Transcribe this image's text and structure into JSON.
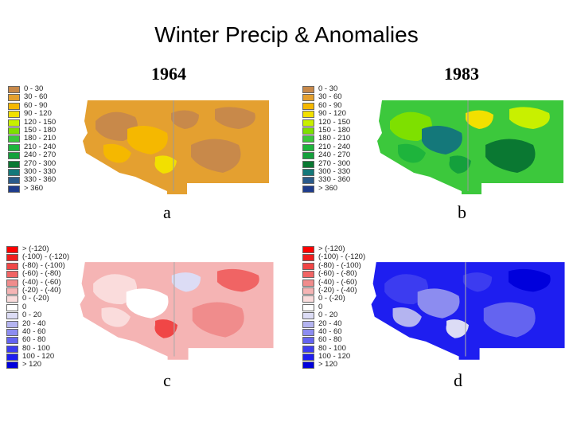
{
  "title": "Winter Precip & Anomalies",
  "years": {
    "left": "1964",
    "right": "1983"
  },
  "panel_labels": {
    "a": "a",
    "b": "b",
    "c": "c",
    "d": "d"
  },
  "precip_legend": [
    {
      "label": "0 - 30",
      "color": "#c8894a"
    },
    {
      "label": "30 - 60",
      "color": "#e4a030"
    },
    {
      "label": "60 - 90",
      "color": "#f5b800"
    },
    {
      "label": "90 - 120",
      "color": "#f2e000"
    },
    {
      "label": "120 - 150",
      "color": "#c8f000"
    },
    {
      "label": "150 - 180",
      "color": "#7ee000"
    },
    {
      "label": "180 - 210",
      "color": "#3cc83c"
    },
    {
      "label": "210 - 240",
      "color": "#1eb43c"
    },
    {
      "label": "240 - 270",
      "color": "#14a03c"
    },
    {
      "label": "270 - 300",
      "color": "#0a7832"
    },
    {
      "label": "300 - 330",
      "color": "#14787a"
    },
    {
      "label": "330 - 360",
      "color": "#2a5a8a"
    },
    {
      "label": "> 360",
      "color": "#1e3c8c"
    }
  ],
  "anomaly_legend": [
    {
      "label": "> (-120)",
      "color": "#ff0000"
    },
    {
      "label": "(-100) - (-120)",
      "color": "#f01e1e"
    },
    {
      "label": "(-80) - (-100)",
      "color": "#f04646"
    },
    {
      "label": "(-60) - (-80)",
      "color": "#f06464"
    },
    {
      "label": "(-40) - (-60)",
      "color": "#f08c8c"
    },
    {
      "label": "(-20) - (-40)",
      "color": "#f5b4b4"
    },
    {
      "label": "0 - (-20)",
      "color": "#fadcdc"
    },
    {
      "label": "0",
      "color": "#ffffff"
    },
    {
      "label": "0 - 20",
      "color": "#dcdcf5"
    },
    {
      "label": "20 - 40",
      "color": "#b4b4f0"
    },
    {
      "label": "40 - 60",
      "color": "#8c8cf0"
    },
    {
      "label": "60 - 80",
      "color": "#6464f0"
    },
    {
      "label": "80 - 100",
      "color": "#3c3cf0"
    },
    {
      "label": "100 - 120",
      "color": "#1e1ef0"
    },
    {
      "label": "> 120",
      "color": "#0000dc"
    }
  ],
  "maps": {
    "a": {
      "base": "#e4a030",
      "border": "#9a9a9a",
      "patches": [
        "#c8894a",
        "#c8894a",
        "#f5b800",
        "#c8894a",
        "#f5b800",
        "#c8894a",
        "#f2e000"
      ]
    },
    "b": {
      "base": "#3cc83c",
      "border": "#9a9a9a",
      "patches": [
        "#7ee000",
        "#0a7832",
        "#14787a",
        "#c8f000",
        "#1eb43c",
        "#f2e000",
        "#14a03c"
      ]
    },
    "c": {
      "base": "#f5b4b4",
      "border": "#aaaaaa",
      "patches": [
        "#fadcdc",
        "#f08c8c",
        "#ffffff",
        "#f06464",
        "#fadcdc",
        "#dcdcf5",
        "#f04646"
      ]
    },
    "d": {
      "base": "#1e1ef0",
      "border": "#aaaaaa",
      "patches": [
        "#3c3cf0",
        "#6464f0",
        "#8c8cf0",
        "#0000dc",
        "#b4b4f0",
        "#3c3cf0",
        "#dcdcf5"
      ]
    }
  }
}
